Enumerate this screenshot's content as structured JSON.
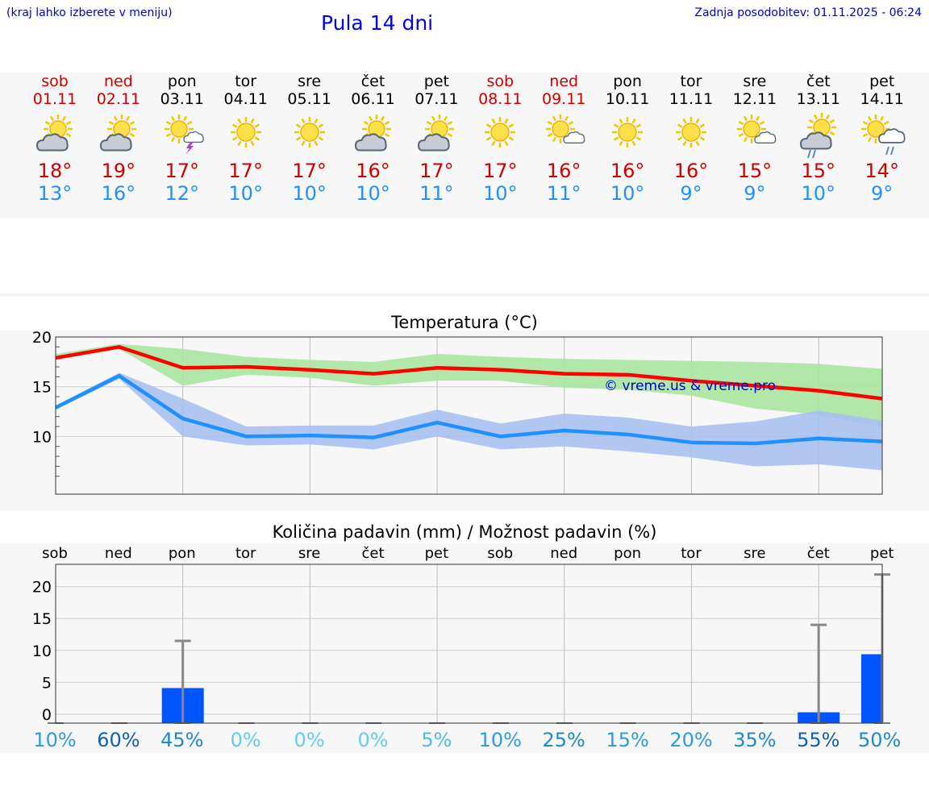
{
  "header": {
    "hint": "(kraj lahko izberete v meniju)",
    "title": "Pula 14 dni",
    "updated": "Zadnja posodobitev: 01.11.2025 - 06:24"
  },
  "days": [
    {
      "name": "sob",
      "date": "01.11",
      "weekend": true,
      "icon": "partly-cloudy-icon",
      "max": "18°",
      "min": "13°"
    },
    {
      "name": "ned",
      "date": "02.11",
      "weekend": true,
      "icon": "partly-cloudy-icon",
      "max": "19°",
      "min": "16°"
    },
    {
      "name": "pon",
      "date": "03.11",
      "weekend": false,
      "icon": "sun-thunder-icon",
      "max": "17°",
      "min": "12°"
    },
    {
      "name": "tor",
      "date": "04.11",
      "weekend": false,
      "icon": "sun-icon",
      "max": "17°",
      "min": "10°"
    },
    {
      "name": "sre",
      "date": "05.11",
      "weekend": false,
      "icon": "sun-icon",
      "max": "17°",
      "min": "10°"
    },
    {
      "name": "čet",
      "date": "06.11",
      "weekend": false,
      "icon": "partly-cloudy-icon",
      "max": "16°",
      "min": "10°"
    },
    {
      "name": "pet",
      "date": "07.11",
      "weekend": false,
      "icon": "partly-cloudy-icon",
      "max": "17°",
      "min": "11°"
    },
    {
      "name": "sob",
      "date": "08.11",
      "weekend": true,
      "icon": "sun-icon",
      "max": "17°",
      "min": "10°"
    },
    {
      "name": "ned",
      "date": "09.11",
      "weekend": true,
      "icon": "sun-small-cloud-icon",
      "max": "16°",
      "min": "11°"
    },
    {
      "name": "pon",
      "date": "10.11",
      "weekend": false,
      "icon": "sun-icon",
      "max": "16°",
      "min": "10°"
    },
    {
      "name": "tor",
      "date": "11.11",
      "weekend": false,
      "icon": "sun-icon",
      "max": "16°",
      "min": "9°"
    },
    {
      "name": "sre",
      "date": "12.11",
      "weekend": false,
      "icon": "sun-small-cloud-icon",
      "max": "15°",
      "min": "9°"
    },
    {
      "name": "čet",
      "date": "13.11",
      "weekend": false,
      "icon": "partly-cloudy-rain-icon",
      "max": "15°",
      "min": "10°"
    },
    {
      "name": "pet",
      "date": "14.11",
      "weekend": false,
      "icon": "sun-rain-cloud-icon",
      "max": "14°",
      "min": "9°"
    }
  ],
  "colors": {
    "weekend": "#cc0000",
    "max_line": "#ff0000",
    "min_line": "#1e90ff",
    "max_band": "#a8e6a0",
    "min_band": "#a8c0f0",
    "bar": "#0055ff"
  },
  "chart_data": [
    {
      "type": "line",
      "title": "Temperatura (°C)",
      "xlabel": "",
      "ylabel": "",
      "x": [
        0,
        1,
        2,
        3,
        4,
        5,
        6,
        7,
        8,
        9,
        10,
        11,
        12,
        13
      ],
      "ylim": [
        4.2,
        20
      ],
      "yticks": [
        10,
        15,
        20
      ],
      "grid": true,
      "watermark": "© vreme.us & vreme.pro",
      "series": [
        {
          "name": "max",
          "values": [
            17.9,
            19.0,
            16.9,
            17.0,
            16.7,
            16.3,
            16.9,
            16.7,
            16.3,
            16.2,
            15.6,
            15.1,
            14.6,
            13.8
          ]
        },
        {
          "name": "max_band_high",
          "values": [
            18.3,
            19.3,
            18.8,
            18.0,
            17.7,
            17.5,
            18.3,
            18.0,
            17.8,
            17.7,
            17.6,
            17.5,
            17.3,
            16.8
          ]
        },
        {
          "name": "max_band_low",
          "values": [
            17.7,
            18.8,
            15.1,
            16.2,
            15.9,
            15.1,
            15.6,
            15.6,
            14.9,
            14.7,
            14.1,
            12.8,
            12.2,
            10.9
          ]
        },
        {
          "name": "min",
          "values": [
            12.9,
            16.1,
            11.8,
            10.0,
            10.1,
            9.9,
            11.4,
            10.0,
            10.6,
            10.2,
            9.4,
            9.3,
            9.8,
            9.5
          ]
        },
        {
          "name": "min_band_high",
          "values": [
            13.1,
            16.4,
            13.8,
            11.0,
            11.1,
            11.1,
            12.7,
            11.3,
            12.3,
            11.9,
            11.0,
            11.5,
            12.6,
            11.6
          ]
        },
        {
          "name": "min_band_low",
          "values": [
            12.7,
            15.8,
            10.0,
            9.1,
            9.2,
            8.7,
            10.0,
            8.7,
            9.0,
            8.5,
            7.9,
            7.0,
            7.2,
            6.6
          ]
        }
      ]
    },
    {
      "type": "bar",
      "title": "Količina padavin (mm) / Možnost padavin (%)",
      "categories": [
        "sob",
        "ned",
        "pon",
        "tor",
        "sre",
        "čet",
        "pet",
        "sob",
        "ned",
        "pon",
        "tor",
        "sre",
        "čet",
        "pet"
      ],
      "values": [
        0,
        0,
        4.1,
        0,
        0,
        0,
        0,
        0,
        0,
        0,
        0,
        0,
        0.3,
        9.4
      ],
      "error_high": [
        0,
        0,
        11.5,
        0,
        0,
        0,
        0,
        0,
        0,
        0,
        0,
        0,
        14.0,
        21.9
      ],
      "chance": [
        "10%",
        "60%",
        "45%",
        "0%",
        "0%",
        "0%",
        "5%",
        "10%",
        "25%",
        "15%",
        "20%",
        "35%",
        "55%",
        "50%"
      ],
      "chance_colors": [
        "#3399dd",
        "#1060b0",
        "#2288cc",
        "#66ccee",
        "#66ccee",
        "#66ccee",
        "#55bbe8",
        "#3399dd",
        "#2288cc",
        "#3399dd",
        "#3399dd",
        "#2288cc",
        "#1060b0",
        "#2288cc"
      ],
      "ylim": [
        -1.4,
        23.5
      ],
      "yticks": [
        0,
        5,
        10,
        15,
        20
      ],
      "xlabel": "",
      "ylabel": ""
    }
  ]
}
